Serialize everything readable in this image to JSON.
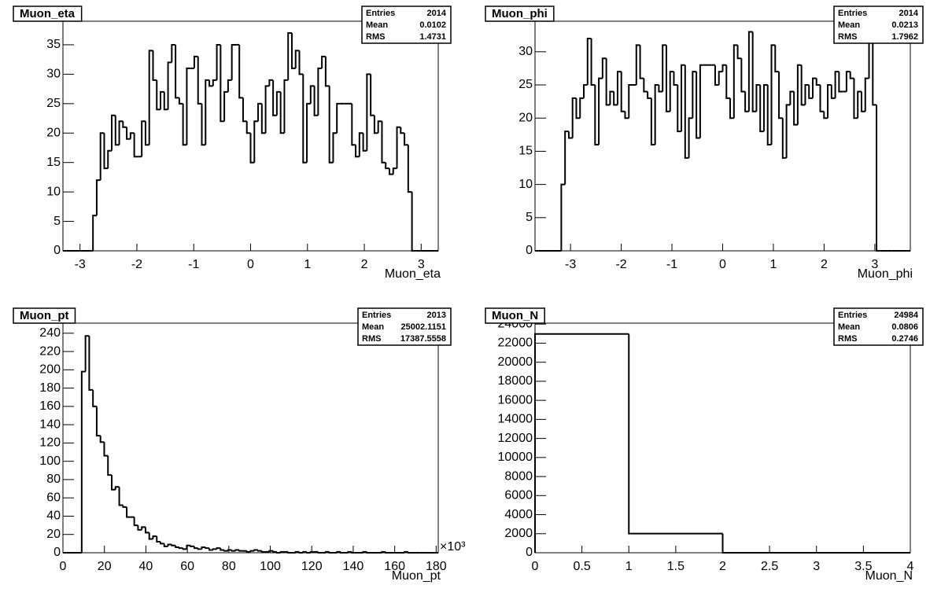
{
  "chart_data": [
    {
      "type": "histogram",
      "title": "Muon_eta",
      "x_label": "Muon_eta",
      "color": "#000000",
      "stats": {
        "labels": [
          "Entries",
          "Mean",
          "RMS"
        ],
        "values": [
          2014,
          0.0102,
          1.4731
        ]
      },
      "xlim": [
        -3.3,
        3.3
      ],
      "ylim": [
        0,
        39
      ],
      "xticks": [
        -3,
        -2,
        -1,
        0,
        1,
        2,
        3
      ],
      "yticks": [
        0,
        5,
        10,
        15,
        20,
        25,
        30,
        35
      ],
      "bins": [
        -3.3,
        -3.234,
        -3.168,
        -3.102,
        -3.036,
        -2.97,
        -2.904,
        -2.838,
        -2.772,
        -2.706,
        -2.64,
        -2.574,
        -2.508,
        -2.442,
        -2.376,
        -2.31,
        -2.244,
        -2.178,
        -2.112,
        -2.046,
        -1.98,
        -1.914,
        -1.848,
        -1.782,
        -1.716,
        -1.65,
        -1.584,
        -1.518,
        -1.452,
        -1.386,
        -1.32,
        -1.254,
        -1.188,
        -1.122,
        -1.056,
        -0.99,
        -0.924,
        -0.858,
        -0.792,
        -0.726,
        -0.66,
        -0.594,
        -0.528,
        -0.462,
        -0.396,
        -0.33,
        -0.264,
        -0.198,
        -0.132,
        -0.066,
        0,
        0.066,
        0.132,
        0.198,
        0.264,
        0.33,
        0.396,
        0.462,
        0.528,
        0.594,
        0.66,
        0.726,
        0.792,
        0.858,
        0.924,
        0.99,
        1.056,
        1.122,
        1.188,
        1.254,
        1.32,
        1.386,
        1.452,
        1.518,
        1.584,
        1.65,
        1.716,
        1.782,
        1.848,
        1.914,
        1.98,
        2.046,
        2.112,
        2.178,
        2.244,
        2.31,
        2.376,
        2.442,
        2.508,
        2.574,
        2.64,
        2.706,
        2.772,
        2.838,
        2.904,
        2.97,
        3.036,
        3.102,
        3.168,
        3.234,
        3.3
      ],
      "values": [
        0,
        0,
        0,
        0,
        0,
        0,
        0,
        0,
        6,
        12,
        20,
        14,
        17,
        23,
        18,
        22,
        21,
        19,
        20,
        16,
        16,
        22,
        18,
        34,
        29,
        24,
        27,
        24,
        32,
        35,
        26,
        25,
        18,
        31,
        31,
        33,
        25,
        18,
        29,
        28,
        29,
        35,
        22,
        27,
        29,
        35,
        35,
        26,
        22,
        20,
        15,
        22,
        25,
        20,
        28,
        29,
        23,
        27,
        20,
        29,
        37,
        31,
        34,
        30,
        15,
        25,
        28,
        23,
        31,
        33,
        28,
        15,
        20,
        25,
        25,
        25,
        25,
        18,
        16,
        20,
        17,
        30,
        23,
        20,
        22,
        15,
        14,
        13,
        14,
        21,
        20,
        18,
        10,
        0,
        0,
        0,
        0,
        0,
        0,
        0
      ]
    },
    {
      "type": "histogram",
      "title": "Muon_phi",
      "x_label": "Muon_phi",
      "color": "#000000",
      "stats": {
        "labels": [
          "Entries",
          "Mean",
          "RMS"
        ],
        "values": [
          2014,
          0.0213,
          1.7962
        ]
      },
      "xlim": [
        -3.7,
        3.7
      ],
      "ylim": [
        0,
        34.6
      ],
      "xticks": [
        -3,
        -2,
        -1,
        0,
        1,
        2,
        3
      ],
      "yticks": [
        0,
        5,
        10,
        15,
        20,
        25,
        30
      ],
      "bins": [
        -3.7,
        -3.626,
        -3.552,
        -3.478,
        -3.404,
        -3.33,
        -3.256,
        -3.182,
        -3.108,
        -3.034,
        -2.96,
        -2.886,
        -2.812,
        -2.738,
        -2.664,
        -2.59,
        -2.516,
        -2.442,
        -2.368,
        -2.294,
        -2.22,
        -2.146,
        -2.072,
        -1.998,
        -1.924,
        -1.85,
        -1.776,
        -1.702,
        -1.628,
        -1.554,
        -1.48,
        -1.406,
        -1.332,
        -1.258,
        -1.184,
        -1.11,
        -1.036,
        -0.962,
        -0.888,
        -0.814,
        -0.74,
        -0.666,
        -0.592,
        -0.518,
        -0.444,
        -0.37,
        -0.296,
        -0.222,
        -0.148,
        -0.074,
        0,
        0.074,
        0.148,
        0.222,
        0.296,
        0.37,
        0.444,
        0.518,
        0.592,
        0.666,
        0.74,
        0.814,
        0.888,
        0.962,
        1.036,
        1.11,
        1.184,
        1.258,
        1.332,
        1.406,
        1.48,
        1.554,
        1.628,
        1.702,
        1.776,
        1.85,
        1.924,
        1.998,
        2.072,
        2.146,
        2.22,
        2.294,
        2.368,
        2.442,
        2.516,
        2.59,
        2.664,
        2.738,
        2.812,
        2.886,
        2.96,
        3.034,
        3.108,
        3.182,
        3.256,
        3.33,
        3.404,
        3.478,
        3.552,
        3.626,
        3.7
      ],
      "values": [
        0,
        0,
        0,
        0,
        0,
        0,
        0,
        10,
        18,
        17,
        23,
        20,
        23,
        25,
        32,
        25,
        16,
        26,
        29,
        22,
        24,
        22,
        27,
        21,
        20,
        25,
        25,
        31,
        26,
        24,
        23,
        16,
        25,
        24,
        31,
        21,
        27,
        25,
        18,
        28,
        14,
        20,
        27,
        17,
        28,
        28,
        28,
        28,
        25,
        27,
        28,
        23,
        20,
        31,
        29,
        24,
        21,
        33,
        21,
        25,
        18,
        25,
        16,
        31,
        27,
        20,
        14,
        22,
        24,
        19,
        28,
        22,
        25,
        23,
        26,
        25,
        21,
        20,
        25,
        23,
        27,
        24,
        24,
        27,
        26,
        20,
        24,
        21,
        26,
        35,
        22,
        0,
        0,
        0,
        0,
        0,
        0,
        0,
        0,
        0
      ]
    },
    {
      "type": "histogram",
      "title": "Muon_pt",
      "x_label": "Muon_pt",
      "x_multiplier": "×10³",
      "color": "#000000",
      "stats": {
        "labels": [
          "Entries",
          "Mean",
          "RMS"
        ],
        "values": [
          2013,
          25002.1151,
          17387.5558
        ]
      },
      "xlim": [
        0,
        181
      ],
      "ylim": [
        0,
        251
      ],
      "xticks": [
        0,
        20,
        40,
        60,
        80,
        100,
        120,
        140,
        160,
        180
      ],
      "yticks": [
        0,
        20,
        40,
        60,
        80,
        100,
        120,
        140,
        160,
        180,
        200,
        220,
        240
      ],
      "bins": [
        0,
        1.81,
        3.62,
        5.43,
        7.24,
        9.05,
        10.86,
        12.67,
        14.48,
        16.29,
        18.1,
        19.91,
        21.72,
        23.53,
        25.34,
        27.15,
        28.96,
        30.77,
        32.58,
        34.39,
        36.2,
        38.01,
        39.82,
        41.63,
        43.44,
        45.25,
        47.06,
        48.87,
        50.68,
        52.49,
        54.3,
        56.11,
        57.92,
        59.73,
        61.54,
        63.35,
        65.16,
        66.97,
        68.78,
        70.59,
        72.4,
        74.21,
        76.02,
        77.83,
        79.64,
        81.45,
        83.26,
        85.07,
        86.88,
        88.69,
        90.5,
        92.31,
        94.12,
        95.93,
        97.74,
        99.55,
        101.36,
        103.17,
        104.98,
        106.79,
        108.6,
        110.41,
        112.22,
        114.03,
        115.84,
        117.65,
        119.46,
        121.27,
        123.08,
        124.89,
        126.7,
        128.51,
        130.32,
        132.13,
        133.94,
        135.75,
        137.56,
        139.37,
        141.18,
        142.99,
        144.8,
        146.61,
        148.42,
        150.23,
        152.04,
        153.85,
        155.66,
        157.47,
        159.28,
        161.09,
        162.9,
        164.71,
        166.52,
        168.33,
        170.14,
        171.95,
        173.76,
        175.57,
        177.38,
        179.19,
        181
      ],
      "values": [
        0,
        0,
        0,
        0,
        0,
        198,
        237,
        178,
        160,
        128,
        121,
        106,
        85,
        69,
        72,
        52,
        50,
        39,
        39,
        30,
        25,
        28,
        22,
        15,
        18,
        12,
        10,
        7,
        9,
        8,
        6,
        5,
        4,
        8,
        7,
        5,
        4,
        6,
        5,
        3,
        4,
        5,
        3,
        2,
        3,
        2,
        3,
        2,
        2,
        1,
        2,
        3,
        2,
        1,
        1,
        2,
        1,
        0,
        1,
        1,
        0,
        0,
        1,
        0,
        1,
        0,
        1,
        1,
        0,
        0,
        1,
        0,
        0,
        1,
        0,
        0,
        1,
        0,
        0,
        0,
        1,
        0,
        0,
        0,
        0,
        1,
        0,
        0,
        0,
        0,
        0,
        1,
        0,
        0,
        0,
        0,
        0,
        0,
        0,
        0
      ]
    },
    {
      "type": "histogram",
      "title": "Muon_N",
      "x_label": "Muon_N",
      "color": "#000000",
      "stats": {
        "labels": [
          "Entries",
          "Mean",
          "RMS"
        ],
        "values": [
          24984,
          0.0806,
          0.2746
        ]
      },
      "xlim": [
        0,
        4
      ],
      "ylim": [
        0,
        24100
      ],
      "xticks": [
        0,
        0.5,
        1,
        1.5,
        2,
        2.5,
        3,
        3.5,
        4
      ],
      "yticks": [
        0,
        2000,
        4000,
        6000,
        8000,
        10000,
        12000,
        14000,
        16000,
        18000,
        20000,
        22000,
        24000
      ],
      "bins": [
        0,
        1,
        2,
        3,
        4
      ],
      "values": [
        22970,
        2014,
        0,
        0
      ]
    }
  ]
}
